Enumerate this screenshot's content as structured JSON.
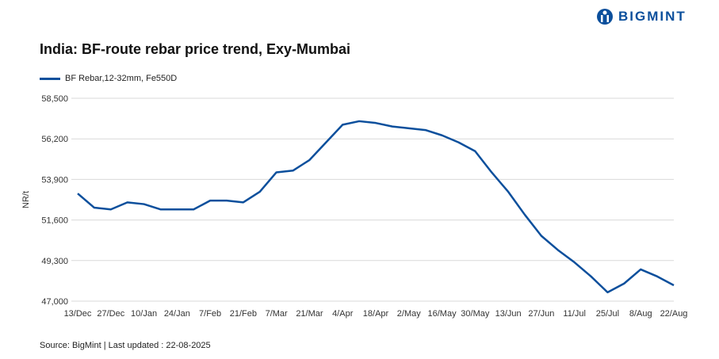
{
  "brand": "BIGMINT",
  "chart_data": {
    "type": "line",
    "title": "India: BF-route rebar price trend, Exy-Mumbai",
    "ylabel": "NR/t",
    "xlabel": "",
    "ylim": [
      47000,
      58500
    ],
    "yticks": [
      47000,
      49300,
      51600,
      53900,
      56200,
      58500
    ],
    "ytick_labels": [
      "47,000",
      "49,300",
      "51,600",
      "53,900",
      "56,200",
      "58,500"
    ],
    "xtick_labels": [
      "13/Dec",
      "27/Dec",
      "10/Jan",
      "24/Jan",
      "7/Feb",
      "21/Feb",
      "7/Mar",
      "21/Mar",
      "4/Apr",
      "18/Apr",
      "2/May",
      "16/May",
      "30/May",
      "13/Jun",
      "27/Jun",
      "11/Jul",
      "25/Jul",
      "8/Aug",
      "22/Aug"
    ],
    "grid": true,
    "legend_position": "top-left",
    "series": [
      {
        "name": "BF Rebar,12-32mm, Fe550D",
        "color": "#0b4f9c",
        "values": [
          53100,
          52300,
          52200,
          52600,
          52500,
          52200,
          52200,
          52200,
          52700,
          52700,
          52600,
          53200,
          54300,
          54400,
          55000,
          56000,
          57000,
          57200,
          57100,
          56900,
          56800,
          56700,
          56400,
          56000,
          55500,
          54300,
          53200,
          51900,
          50700,
          49900,
          49200,
          48400,
          47500,
          48000,
          48800,
          48400,
          47900
        ]
      }
    ]
  },
  "source": "Source: BigMint | Last updated : 22-08-2025"
}
